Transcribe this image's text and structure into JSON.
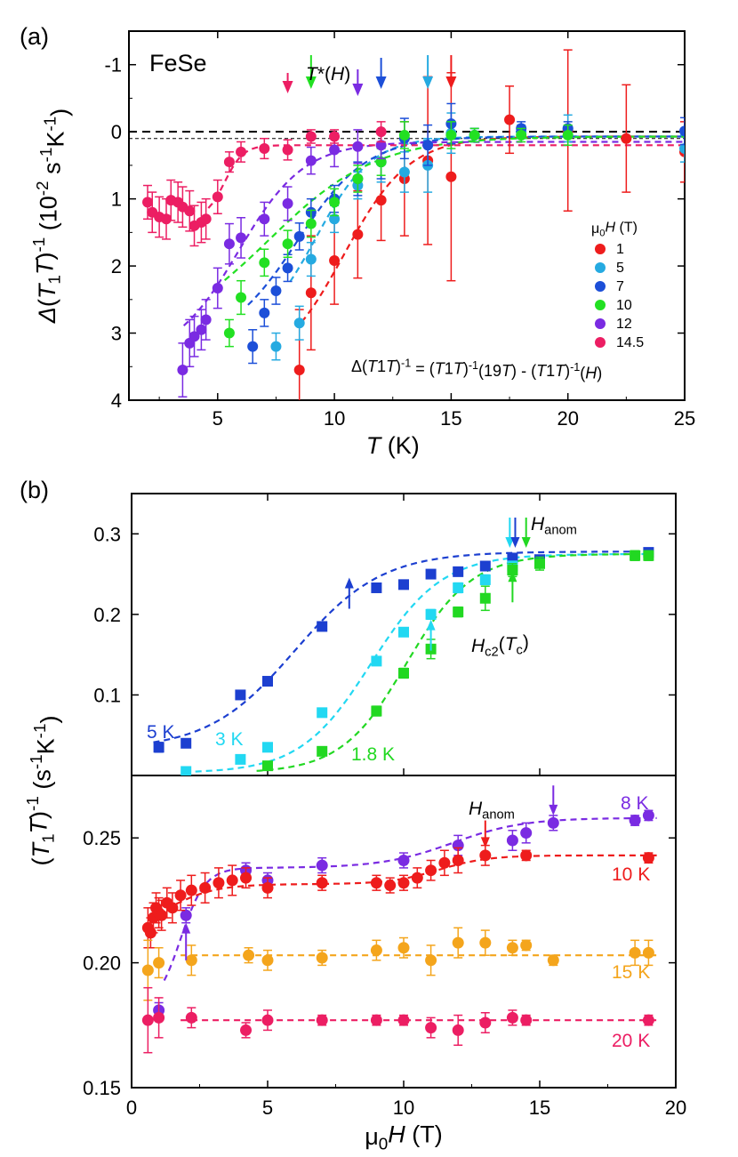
{
  "chart_data": [
    {
      "panel": "(a)",
      "type": "scatter",
      "sample": "FeSe",
      "xlabel": "T (K)",
      "ylabel": "Δ(T1T)^-1 (10^-2 s^-1 K^-1)",
      "xlim": [
        1.2,
        25
      ],
      "ylim": [
        -1.5,
        4
      ],
      "y_inverted": true,
      "xticks": [
        5,
        10,
        15,
        20,
        25
      ],
      "yticks": [
        -1,
        0,
        1,
        2,
        3,
        4
      ],
      "formula": "Δ(T1T)^-1 = (T1T)^-1(19T) - (T1T)^-1(H)",
      "annotation": "T*(H)",
      "legend_title": "μ0H (T)",
      "series": [
        {
          "name": "1",
          "color": "#ee1c1c",
          "x": [
            8.5,
            9.0,
            10.0,
            11.0,
            12.0,
            13.0,
            14.0,
            15.0,
            17.5,
            20.0,
            22.5,
            25.0
          ],
          "y": [
            3.55,
            2.4,
            1.92,
            1.53,
            1.02,
            0.7,
            0.43,
            0.67,
            -0.18,
            -0.02,
            0.1,
            0.3
          ],
          "err": [
            0.9,
            0.85,
            0.65,
            0.65,
            0.6,
            0.85,
            1.25,
            1.55,
            0.5,
            1.2,
            0.8,
            0.45
          ],
          "marker_T": 15.0
        },
        {
          "name": "5",
          "color": "#25aae1",
          "x": [
            7.5,
            8.5,
            9.0,
            10.0,
            11.0,
            12.0,
            13.0,
            14.0,
            15.0,
            16.0,
            18.0,
            20.0,
            25.0
          ],
          "y": [
            3.2,
            2.85,
            1.9,
            1.3,
            0.8,
            0.45,
            0.6,
            0.5,
            0.02,
            0.05,
            0.0,
            -0.05,
            0.25
          ],
          "err": [
            0.2,
            0.25,
            0.25,
            0.2,
            0.2,
            0.3,
            0.3,
            0.4,
            0.3,
            0.1,
            0.1,
            0.2,
            0.2
          ],
          "marker_T": 14.0
        },
        {
          "name": "7",
          "color": "#1c4fd8",
          "x": [
            6.5,
            7.0,
            7.5,
            8.0,
            8.5,
            9.0,
            10.0,
            11.0,
            12.0,
            13.0,
            14.0,
            15.0,
            16.0,
            18.0,
            20.0,
            25.0
          ],
          "y": [
            3.2,
            2.7,
            2.37,
            2.03,
            1.56,
            1.2,
            1.0,
            0.7,
            0.45,
            0.1,
            0.2,
            -0.12,
            0.05,
            -0.05,
            -0.05,
            -0.01
          ],
          "err": [
            0.25,
            0.2,
            0.2,
            0.2,
            0.2,
            0.2,
            0.2,
            0.25,
            0.25,
            0.3,
            0.3,
            0.3,
            0.1,
            0.1,
            0.1,
            0.2
          ],
          "marker_T": 12.0
        },
        {
          "name": "10",
          "color": "#22e022",
          "x": [
            5.5,
            6.0,
            7.0,
            8.0,
            9.0,
            10.0,
            11.0,
            12.0,
            13.0,
            15.0,
            16.0,
            18.0,
            20.0
          ],
          "y": [
            3.0,
            2.47,
            1.95,
            1.67,
            1.37,
            1.05,
            0.7,
            0.45,
            0.05,
            0.05,
            0.05,
            0.05,
            0.05
          ],
          "err": [
            0.2,
            0.25,
            0.2,
            0.2,
            0.2,
            0.2,
            0.2,
            0.2,
            0.2,
            0.2,
            0.1,
            0.1,
            0.15
          ],
          "marker_T": 9.0
        },
        {
          "name": "12",
          "color": "#7a2be2",
          "x": [
            3.5,
            3.8,
            4.0,
            4.3,
            4.5,
            5.0,
            5.5,
            6.0,
            7.0,
            8.0,
            9.0,
            10.0,
            11.0,
            12.0
          ],
          "y": [
            3.55,
            3.15,
            3.05,
            2.95,
            2.8,
            2.33,
            1.67,
            1.58,
            1.3,
            1.07,
            0.43,
            0.27,
            0.22,
            0.2
          ],
          "err": [
            0.4,
            0.35,
            0.3,
            0.3,
            0.3,
            0.3,
            0.3,
            0.3,
            0.25,
            0.25,
            0.2,
            0.25,
            0.25,
            0.2
          ],
          "marker_T": 11.0
        },
        {
          "name": "14.5",
          "color": "#ec1e63",
          "x": [
            2.0,
            2.2,
            2.5,
            2.8,
            3.0,
            3.3,
            3.5,
            3.8,
            4.0,
            4.3,
            4.5,
            5.0,
            5.5,
            6.0,
            7.0,
            8.0,
            9.0,
            10.0,
            12.0
          ],
          "y": [
            1.05,
            1.2,
            1.27,
            1.3,
            1.02,
            1.05,
            1.12,
            1.18,
            1.4,
            1.35,
            1.3,
            0.97,
            0.45,
            0.3,
            0.25,
            0.27,
            0.07,
            0.07,
            0.0
          ],
          "err": [
            0.25,
            0.3,
            0.3,
            0.3,
            0.3,
            0.3,
            0.3,
            0.3,
            0.3,
            0.3,
            0.3,
            0.25,
            0.15,
            0.15,
            0.15,
            0.15,
            0.1,
            0.1,
            0.15
          ],
          "marker_T": 8.0
        }
      ],
      "fits": [
        {
          "series": "1",
          "Tstart": 8.6,
          "ymax": 3.6,
          "Tc": 10.4,
          "w": 1.4,
          "y_high": 0.07
        },
        {
          "series": "5",
          "Tstart": 8.1,
          "ymax": 3.1,
          "Tc": 9.2,
          "w": 1.2,
          "y_high": 0.07
        },
        {
          "series": "7",
          "Tstart": 6.3,
          "ymax": 3.2,
          "Tc": 8.4,
          "w": 1.5,
          "y_high": 0.07
        },
        {
          "series": "10",
          "Tstart": 5.3,
          "ymax": 3.15,
          "Tc": 7.2,
          "w": 2.3,
          "y_high": 0.07
        },
        {
          "series": "12",
          "Tstart": 3.55,
          "ymax": 3.4,
          "Tc": 5.9,
          "w": 1.4,
          "y_high": 0.15
        },
        {
          "series": "14.5",
          "Tstart": 4.6,
          "ymax": 1.3,
          "Tc": 5.3,
          "w": 0.4,
          "y_high": 0.2
        }
      ]
    },
    {
      "panel": "(b)",
      "type": "scatter",
      "xlabel": "μ0H (T)",
      "ylabel": "(T1T)^-1 (s^-1 K^-1)",
      "xlim": [
        0,
        20
      ],
      "xticks": [
        0,
        5,
        10,
        15,
        20
      ],
      "upper": {
        "ylim": [
          0.0,
          0.35
        ],
        "yticks": [
          0.1,
          0.2,
          0.3
        ],
        "annotations": [
          "H_anom",
          "H_c2(T_c)"
        ],
        "series": [
          {
            "name": "5 K",
            "color": "#1c3fd0",
            "x": [
              1.0,
              2.0,
              4.0,
              5.0,
              7.0,
              9.0,
              10.0,
              11.0,
              12.0,
              13.0,
              14.0,
              15.0,
              19.0
            ],
            "y": [
              0.035,
              0.04,
              0.1,
              0.117,
              0.185,
              0.233,
              0.237,
              0.25,
              0.253,
              0.26,
              0.27,
              0.268,
              0.277
            ],
            "err": [
              0.006,
              0.005,
              0.004,
              0.004,
              0.004,
              0.005,
              0.005,
              0.005,
              0.005,
              0.005,
              0.005,
              0.005,
              0.005
            ],
            "fit_mid": 6.0,
            "fit_w": 1.6,
            "fit_lo": 0.032,
            "fit_hi": 0.278
          },
          {
            "name": "3 K",
            "color": "#22d8f2",
            "x": [
              2.0,
              4.0,
              5.0,
              7.0,
              9.0,
              10.0,
              11.0,
              12.0,
              13.0,
              14.0
            ],
            "y": [
              0.005,
              0.02,
              0.035,
              0.078,
              0.142,
              0.178,
              0.2,
              0.233,
              0.243,
              0.26
            ],
            "err": [
              0.005,
              0.004,
              0.005,
              0.005,
              0.005,
              0.005,
              0.006,
              0.006,
              0.006,
              0.006
            ],
            "fit_mid": 8.8,
            "fit_w": 1.3,
            "fit_lo": 0.003,
            "fit_hi": 0.275
          },
          {
            "name": "1.8 K",
            "color": "#22d822",
            "x": [
              5.0,
              7.0,
              9.0,
              10.0,
              11.0,
              12.0,
              13.0,
              14.0,
              15.0,
              18.5,
              19.0
            ],
            "y": [
              0.012,
              0.03,
              0.08,
              0.127,
              0.157,
              0.203,
              0.22,
              0.255,
              0.263,
              0.273,
              0.273
            ],
            "err": [
              0.004,
              0.005,
              0.006,
              0.006,
              0.012,
              0.006,
              0.015,
              0.008,
              0.008,
              0.006,
              0.006
            ],
            "fit_mid": 10.1,
            "fit_w": 1.2,
            "fit_lo": 0.003,
            "fit_hi": 0.275
          }
        ],
        "arrows": [
          {
            "color": "#1c3fd0",
            "x": 8.0,
            "dir": "up"
          },
          {
            "color": "#22d8f2",
            "x": 11.0,
            "dir": "up"
          },
          {
            "color": "#22d822",
            "x": 14.0,
            "dir": "up"
          },
          {
            "color": "#22d8f2",
            "x": 13.9,
            "dir": "down"
          },
          {
            "color": "#1c3fd0",
            "x": 14.1,
            "dir": "down"
          },
          {
            "color": "#22d822",
            "x": 14.5,
            "dir": "down"
          }
        ]
      },
      "lower": {
        "ylim": [
          0.15,
          0.275
        ],
        "yticks": [
          0.15,
          0.2,
          0.25
        ],
        "annotations": [
          "H_anom"
        ],
        "series": [
          {
            "name": "8 K",
            "color": "#7a2be2",
            "x": [
              1.0,
              2.0,
              4.2,
              5.0,
              7.0,
              10.0,
              12.0,
              14.0,
              14.5,
              15.5,
              18.5,
              19.0
            ],
            "y": [
              0.181,
              0.219,
              0.237,
              0.233,
              0.239,
              0.241,
              0.247,
              0.249,
              0.252,
              0.256,
              0.257,
              0.259
            ],
            "err": [
              0.003,
              0.003,
              0.003,
              0.003,
              0.003,
              0.003,
              0.004,
              0.004,
              0.004,
              0.003,
              0.002,
              0.002
            ],
            "arrows": [
              2.0,
              15.5
            ]
          },
          {
            "name": "10 K",
            "color": "#ee1c1c",
            "x": [
              0.6,
              0.7,
              0.8,
              0.9,
              1.0,
              1.1,
              1.3,
              1.5,
              1.8,
              2.2,
              2.7,
              3.2,
              3.7,
              4.2,
              5.0,
              7.0,
              9.0,
              9.5,
              10.0,
              10.5,
              11.0,
              11.5,
              12.0,
              13.0,
              14.5,
              19.0
            ],
            "y": [
              0.214,
              0.212,
              0.218,
              0.222,
              0.22,
              0.219,
              0.224,
              0.222,
              0.227,
              0.229,
              0.23,
              0.232,
              0.233,
              0.234,
              0.23,
              0.232,
              0.232,
              0.231,
              0.232,
              0.234,
              0.237,
              0.24,
              0.241,
              0.243,
              0.243,
              0.242
            ],
            "err": [
              0.008,
              0.006,
              0.006,
              0.006,
              0.006,
              0.006,
              0.006,
              0.006,
              0.006,
              0.006,
              0.006,
              0.006,
              0.006,
              0.004,
              0.004,
              0.003,
              0.003,
              0.003,
              0.003,
              0.004,
              0.004,
              0.005,
              0.005,
              0.004,
              0.002,
              0.002
            ],
            "arrows": [
              13.0
            ]
          },
          {
            "name": "15 K",
            "color": "#f4a51c",
            "x": [
              0.6,
              1.0,
              2.2,
              4.3,
              5.0,
              7.0,
              9.0,
              10.0,
              11.0,
              12.0,
              13.0,
              14.0,
              14.5,
              15.5,
              18.5,
              19.0
            ],
            "y": [
              0.197,
              0.2,
              0.201,
              0.203,
              0.201,
              0.202,
              0.205,
              0.206,
              0.201,
              0.208,
              0.208,
              0.206,
              0.207,
              0.201,
              0.204,
              0.204
            ],
            "err": [
              0.012,
              0.006,
              0.006,
              0.003,
              0.004,
              0.003,
              0.004,
              0.004,
              0.006,
              0.006,
              0.005,
              0.003,
              0.002,
              0.002,
              0.005,
              0.005
            ]
          },
          {
            "name": "20 K",
            "color": "#ec1e63",
            "x": [
              0.6,
              1.0,
              2.2,
              4.2,
              5.0,
              7.0,
              9.0,
              10.0,
              11.0,
              12.0,
              13.0,
              14.0,
              14.5,
              19.0
            ],
            "y": [
              0.177,
              0.178,
              0.178,
              0.173,
              0.177,
              0.177,
              0.177,
              0.177,
              0.174,
              0.173,
              0.176,
              0.178,
              0.177,
              0.177
            ],
            "err": [
              0.013,
              0.008,
              0.004,
              0.003,
              0.004,
              0.002,
              0.002,
              0.002,
              0.004,
              0.006,
              0.004,
              0.003,
              0.002,
              0.002
            ]
          }
        ]
      }
    }
  ],
  "text": {
    "panel_a": "(a)",
    "panel_b": "(b)",
    "sample": "FeSe",
    "tstar": "T*(H)",
    "legend_title": "μ0H (T)",
    "formula": "Δ(T1T)^-1 = (T1T)^-1(19T) - (T1T)^-1(H)",
    "xlabel_a": "T (K)",
    "ylabel_a": "Δ(T1T)^-1 (10^-2 s^-1 K^-1)",
    "xlabel_b": "μ0H (T)",
    "ylabel_b": "(T1T)^-1 (s^-1 K^-1)",
    "h_anom": "H_anom",
    "hc2": "H_c2(T_c)"
  }
}
